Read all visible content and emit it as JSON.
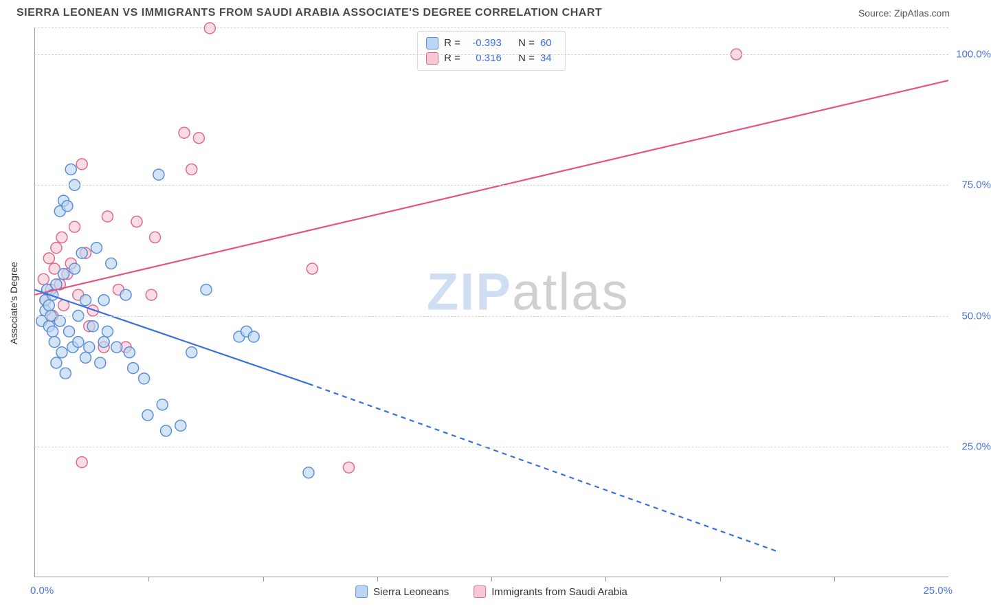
{
  "header": {
    "title": "SIERRA LEONEAN VS IMMIGRANTS FROM SAUDI ARABIA ASSOCIATE'S DEGREE CORRELATION CHART",
    "source": "Source: ZipAtlas.com"
  },
  "watermark": {
    "left": "ZIP",
    "right": "atlas"
  },
  "axes": {
    "y_label": "Associate's Degree",
    "x_origin": "0.0%",
    "x_end": "25.0%",
    "xlim": [
      0,
      25
    ],
    "ylim": [
      0,
      105
    ],
    "y_ticks": [
      {
        "v": 25,
        "label": "25.0%"
      },
      {
        "v": 50,
        "label": "50.0%"
      },
      {
        "v": 75,
        "label": "75.0%"
      },
      {
        "v": 100,
        "label": "100.0%"
      }
    ],
    "x_tick_positions": [
      3.125,
      6.25,
      9.375,
      12.5,
      15.625,
      18.75,
      21.875
    ]
  },
  "styling": {
    "bg": "#ffffff",
    "grid_color": "#d5d5d5",
    "axis_color": "#999999",
    "label_color": "#4a74d8",
    "title_color": "#4a4a4a",
    "title_fontsize": 16,
    "tick_fontsize": 15,
    "marker_radius": 8,
    "marker_stroke_width": 1.5,
    "line_width": 2.2
  },
  "series": {
    "a": {
      "name": "Sierra Leoneans",
      "fill": "#bcd5f3",
      "stroke": "#5a8fd6",
      "line_color": "#3a6fe0",
      "r_value": "-0.393",
      "n_value": "60",
      "trend": {
        "x1": 0,
        "y1": 55,
        "x2": 7.5,
        "y2": 37,
        "ext_x2": 20.3,
        "ext_y2": 5
      },
      "points": [
        [
          0.2,
          49
        ],
        [
          0.3,
          51
        ],
        [
          0.3,
          53
        ],
        [
          0.35,
          55
        ],
        [
          0.4,
          48
        ],
        [
          0.4,
          52
        ],
        [
          0.45,
          50
        ],
        [
          0.5,
          47
        ],
        [
          0.5,
          54
        ],
        [
          0.55,
          45
        ],
        [
          0.6,
          41
        ],
        [
          0.6,
          56
        ],
        [
          0.7,
          49
        ],
        [
          0.7,
          70
        ],
        [
          0.75,
          43
        ],
        [
          0.8,
          72
        ],
        [
          0.8,
          58
        ],
        [
          0.85,
          39
        ],
        [
          0.9,
          71
        ],
        [
          0.95,
          47
        ],
        [
          1.0,
          78
        ],
        [
          1.05,
          44
        ],
        [
          1.1,
          75
        ],
        [
          1.1,
          59
        ],
        [
          1.2,
          50
        ],
        [
          1.2,
          45
        ],
        [
          1.3,
          62
        ],
        [
          1.4,
          53
        ],
        [
          1.4,
          42
        ],
        [
          1.5,
          44
        ],
        [
          1.6,
          48
        ],
        [
          1.7,
          63
        ],
        [
          1.8,
          41
        ],
        [
          1.9,
          45
        ],
        [
          1.9,
          53
        ],
        [
          2.0,
          47
        ],
        [
          2.1,
          60
        ],
        [
          2.25,
          44
        ],
        [
          2.5,
          54
        ],
        [
          2.6,
          43
        ],
        [
          2.7,
          40
        ],
        [
          3.0,
          38
        ],
        [
          3.1,
          31
        ],
        [
          3.4,
          77
        ],
        [
          3.5,
          33
        ],
        [
          3.6,
          28
        ],
        [
          4.0,
          29
        ],
        [
          4.3,
          43
        ],
        [
          4.7,
          55
        ],
        [
          5.6,
          46
        ],
        [
          5.8,
          47
        ],
        [
          6.0,
          46
        ],
        [
          7.5,
          20
        ]
      ]
    },
    "b": {
      "name": "Immigrants from Saudi Arabia",
      "fill": "#f7c9d5",
      "stroke": "#e06a88",
      "line_color": "#e55384",
      "r_value": "0.316",
      "n_value": "34",
      "trend": {
        "x1": 0,
        "y1": 54,
        "x2": 25,
        "y2": 95
      },
      "points": [
        [
          0.25,
          57
        ],
        [
          0.3,
          53
        ],
        [
          0.4,
          61
        ],
        [
          0.45,
          55
        ],
        [
          0.5,
          50
        ],
        [
          0.55,
          59
        ],
        [
          0.6,
          63
        ],
        [
          0.7,
          56
        ],
        [
          0.75,
          65
        ],
        [
          0.8,
          52
        ],
        [
          0.9,
          58
        ],
        [
          1.0,
          60
        ],
        [
          1.1,
          67
        ],
        [
          1.2,
          54
        ],
        [
          1.3,
          22
        ],
        [
          1.3,
          79
        ],
        [
          1.4,
          62
        ],
        [
          1.5,
          48
        ],
        [
          1.6,
          51
        ],
        [
          1.9,
          44
        ],
        [
          2.0,
          69
        ],
        [
          2.3,
          55
        ],
        [
          2.5,
          44
        ],
        [
          2.8,
          68
        ],
        [
          3.2,
          54
        ],
        [
          3.3,
          65
        ],
        [
          4.1,
          85
        ],
        [
          4.3,
          78
        ],
        [
          4.5,
          84
        ],
        [
          4.8,
          105
        ],
        [
          7.6,
          59
        ],
        [
          8.6,
          21
        ],
        [
          19.2,
          100
        ]
      ]
    }
  },
  "legend_top_labels": {
    "r": "R =",
    "n": "N ="
  }
}
